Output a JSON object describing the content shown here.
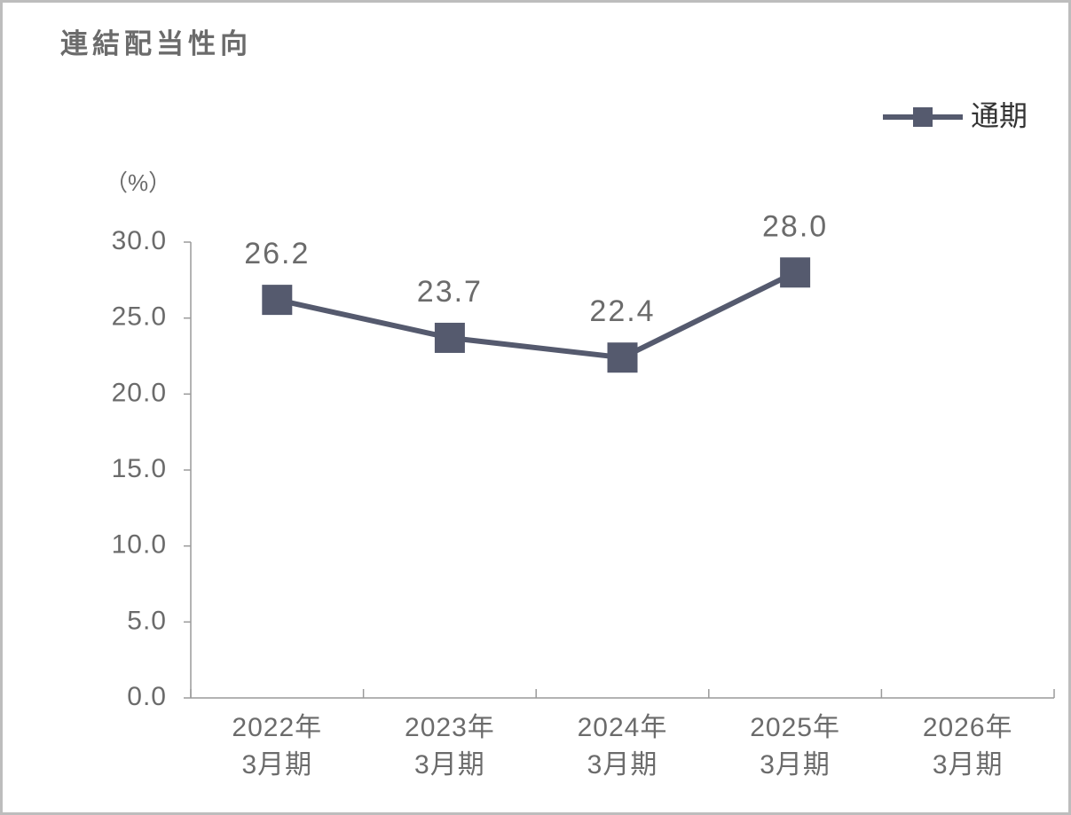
{
  "chart_data": {
    "type": "line",
    "title": "連結配当性向",
    "y_unit": "（%）",
    "categories": [
      [
        "2022年",
        "3月期"
      ],
      [
        "2023年",
        "3月期"
      ],
      [
        "2024年",
        "3月期"
      ],
      [
        "2025年",
        "3月期"
      ],
      [
        "2026年",
        "3月期"
      ]
    ],
    "series": [
      {
        "name": "通期",
        "color": "#555a6e",
        "values": [
          26.2,
          23.7,
          22.4,
          28.0,
          null
        ],
        "value_labels": [
          "26.2",
          "23.7",
          "22.4",
          "28.0",
          null
        ]
      }
    ],
    "ylim": [
      0,
      30
    ],
    "yticks": [
      {
        "value": 0,
        "label": "0.0"
      },
      {
        "value": 5,
        "label": "5.0"
      },
      {
        "value": 10,
        "label": "10.0"
      },
      {
        "value": 15,
        "label": "15.0"
      },
      {
        "value": 20,
        "label": "20.0"
      },
      {
        "value": 25,
        "label": "25.0"
      },
      {
        "value": 30,
        "label": "30.0"
      }
    ],
    "grid": false,
    "legend": "top-right"
  }
}
